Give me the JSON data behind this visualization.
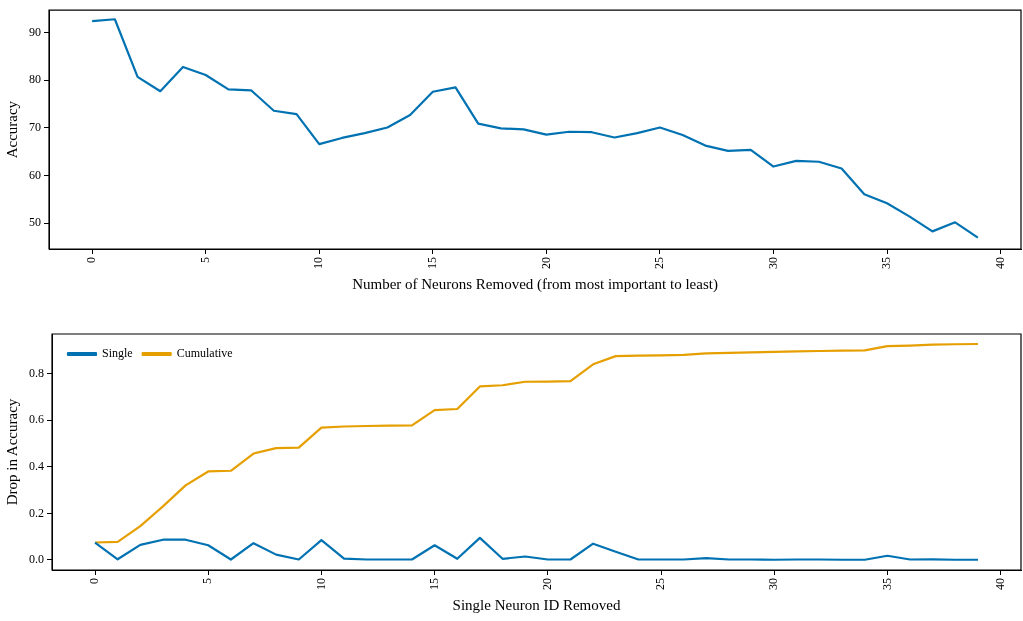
{
  "chart_data": [
    {
      "type": "line",
      "xlabel": "Number of Neurons Removed (from most important to least)",
      "ylabel": "Accuracy",
      "x": [
        0,
        1,
        2,
        3,
        4,
        5,
        6,
        7,
        8,
        9,
        10,
        11,
        12,
        13,
        14,
        15,
        16,
        17,
        18,
        19,
        20,
        21,
        22,
        23,
        24,
        25,
        26,
        27,
        28,
        29,
        30,
        31,
        32,
        33,
        34,
        35,
        36,
        37,
        38,
        39
      ],
      "series": [
        {
          "color": "#0072b2",
          "values": [
            92.4,
            92.8,
            80.7,
            77.7,
            82.8,
            81.1,
            78.1,
            77.9,
            73.6,
            72.9,
            66.6,
            67.9,
            68.9,
            70.1,
            72.7,
            77.6,
            78.5,
            70.9,
            69.9,
            69.7,
            68.6,
            69.2,
            69.1,
            68.0,
            68.9,
            70.1,
            68.5,
            66.3,
            65.2,
            65.4,
            61.9,
            63.1,
            62.9,
            61.5,
            56.1,
            54.2,
            51.4,
            48.3,
            50.2,
            47.0
          ]
        }
      ],
      "xlim": [
        -1.9,
        40.9
      ],
      "xticks": [
        0,
        5,
        10,
        15,
        20,
        25,
        30,
        35,
        40
      ],
      "ylim": [
        44.6,
        94.7
      ],
      "yticks": [
        50,
        60,
        70,
        80,
        90
      ],
      "grid": false,
      "legend": false,
      "marker": "none",
      "line_style": "solid"
    },
    {
      "type": "line",
      "xlabel": "Single Neuron ID Removed",
      "ylabel": "Drop in Accuracy",
      "x": [
        0,
        1,
        2,
        3,
        4,
        5,
        6,
        7,
        8,
        9,
        10,
        11,
        12,
        13,
        14,
        15,
        16,
        17,
        18,
        19,
        20,
        21,
        22,
        23,
        24,
        25,
        26,
        27,
        28,
        29,
        30,
        31,
        32,
        33,
        34,
        35,
        36,
        37,
        38,
        39
      ],
      "series": [
        {
          "name": "Single",
          "color": "#0072b2",
          "values": [
            0.075,
            0.003,
            0.065,
            0.087,
            0.087,
            0.063,
            0.002,
            0.072,
            0.023,
            0.002,
            0.085,
            0.006,
            0.002,
            0.002,
            0.002,
            0.063,
            0.005,
            0.095,
            0.005,
            0.015,
            0.002,
            0.002,
            0.07,
            0.035,
            0.002,
            0.002,
            0.002,
            0.008,
            0.002,
            0.002,
            0.001,
            0.002,
            0.002,
            0.001,
            0.001,
            0.018,
            0.002,
            0.003,
            0.001,
            0.001
          ]
        },
        {
          "name": "Cumulative",
          "color": "#e69f00",
          "values": [
            0.075,
            0.078,
            0.145,
            0.23,
            0.32,
            0.38,
            0.383,
            0.457,
            0.48,
            0.482,
            0.568,
            0.573,
            0.575,
            0.577,
            0.578,
            0.643,
            0.648,
            0.745,
            0.75,
            0.765,
            0.766,
            0.768,
            0.84,
            0.875,
            0.877,
            0.878,
            0.88,
            0.887,
            0.889,
            0.891,
            0.893,
            0.895,
            0.897,
            0.899,
            0.9,
            0.918,
            0.92,
            0.924,
            0.926,
            0.927
          ]
        }
      ],
      "xlim": [
        -1.9,
        40.9
      ],
      "xticks": [
        0,
        5,
        10,
        15,
        20,
        25,
        30,
        35,
        40
      ],
      "ylim": [
        -0.043,
        0.97
      ],
      "yticks": [
        {
          "value": 0,
          "label": "0.0"
        },
        {
          "value": 0.2,
          "label": "0.2"
        },
        {
          "value": 0.4,
          "label": "0.4"
        },
        {
          "value": 0.6,
          "label": "0.6"
        },
        {
          "value": 0.8,
          "label": "0.8"
        }
      ],
      "grid": false,
      "legend": "top left",
      "marker": "none",
      "line_style": "solid"
    }
  ]
}
